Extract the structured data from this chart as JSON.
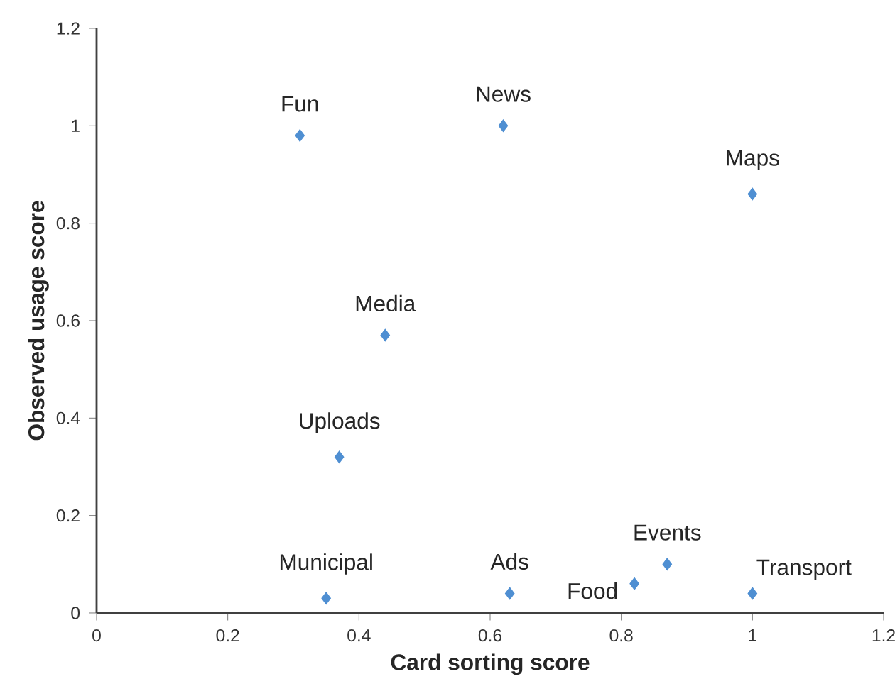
{
  "chart_data": {
    "type": "scatter",
    "xlabel": "Card sorting score",
    "ylabel": "Observed usage score",
    "x": [
      0.31,
      0.62,
      1.0,
      0.44,
      0.37,
      0.35,
      0.63,
      0.82,
      0.87,
      1.0
    ],
    "values": [
      0.98,
      1.0,
      0.86,
      0.57,
      0.32,
      0.03,
      0.04,
      0.06,
      0.1,
      0.04
    ],
    "color": "#4f8fd2",
    "marker": "diamond",
    "xlim": [
      0,
      1.2
    ],
    "ylim": [
      0,
      1.2
    ],
    "xticks": [
      0,
      0.2,
      0.4,
      0.6,
      0.8,
      1,
      1.2
    ],
    "yticks": [
      0,
      0.2,
      0.4,
      0.6,
      0.8,
      1,
      1.2
    ],
    "grid": false,
    "annotations": [
      {
        "text": "Fun",
        "x": 0.31,
        "y": 0.98
      },
      {
        "text": "News",
        "x": 0.62,
        "y": 1.0
      },
      {
        "text": "Maps",
        "x": 1.0,
        "y": 0.86
      },
      {
        "text": "Media",
        "x": 0.44,
        "y": 0.57
      },
      {
        "text": "Uploads",
        "x": 0.37,
        "y": 0.32
      },
      {
        "text": "Municipal",
        "x": 0.35,
        "y": 0.03
      },
      {
        "text": "Ads",
        "x": 0.63,
        "y": 0.04
      },
      {
        "text": "Food",
        "x": 0.82,
        "y": 0.06
      },
      {
        "text": "Events",
        "x": 0.87,
        "y": 0.1
      },
      {
        "text": "Transport",
        "x": 1.0,
        "y": 0.04
      }
    ]
  }
}
